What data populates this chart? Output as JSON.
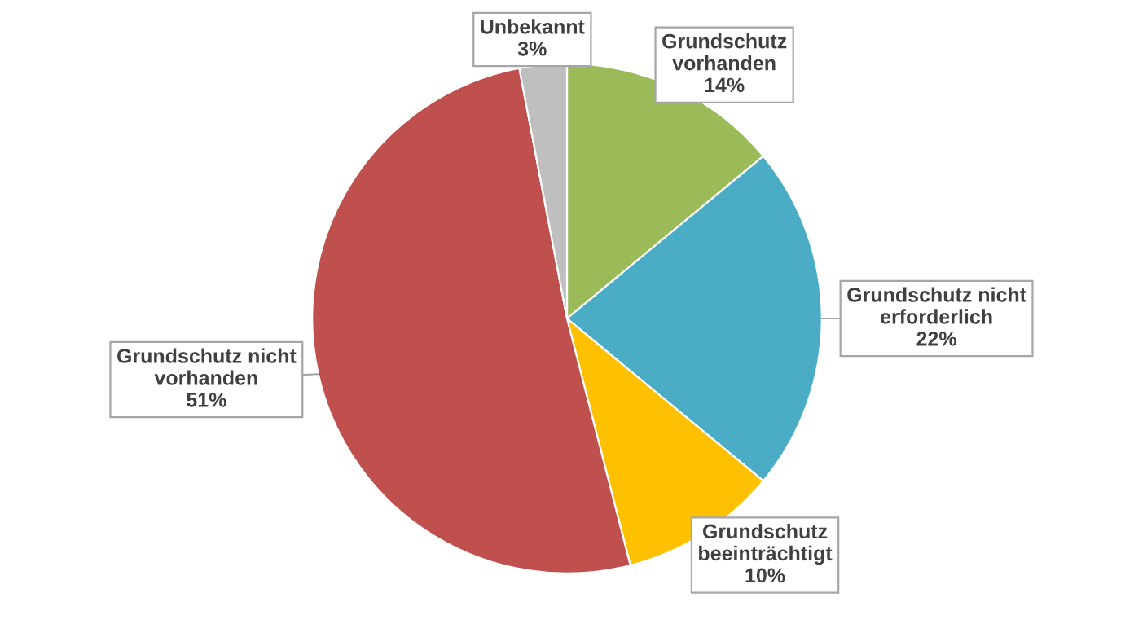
{
  "chart_data": {
    "type": "pie",
    "categories": [
      "Grundschutz vorhanden",
      "Grundschutz nicht erforderlich",
      "Grundschutz beeinträchtigt",
      "Grundschutz nicht vorhanden",
      "Unbekannt"
    ],
    "values": [
      14,
      22,
      10,
      51,
      3
    ],
    "colors": [
      "#9bbb59",
      "#4bacc6",
      "#ffc000",
      "#c0504d",
      "#bfbfbf"
    ],
    "value_labels": [
      "14%",
      "22%",
      "10%",
      "51%",
      "3%"
    ],
    "legend": false
  }
}
